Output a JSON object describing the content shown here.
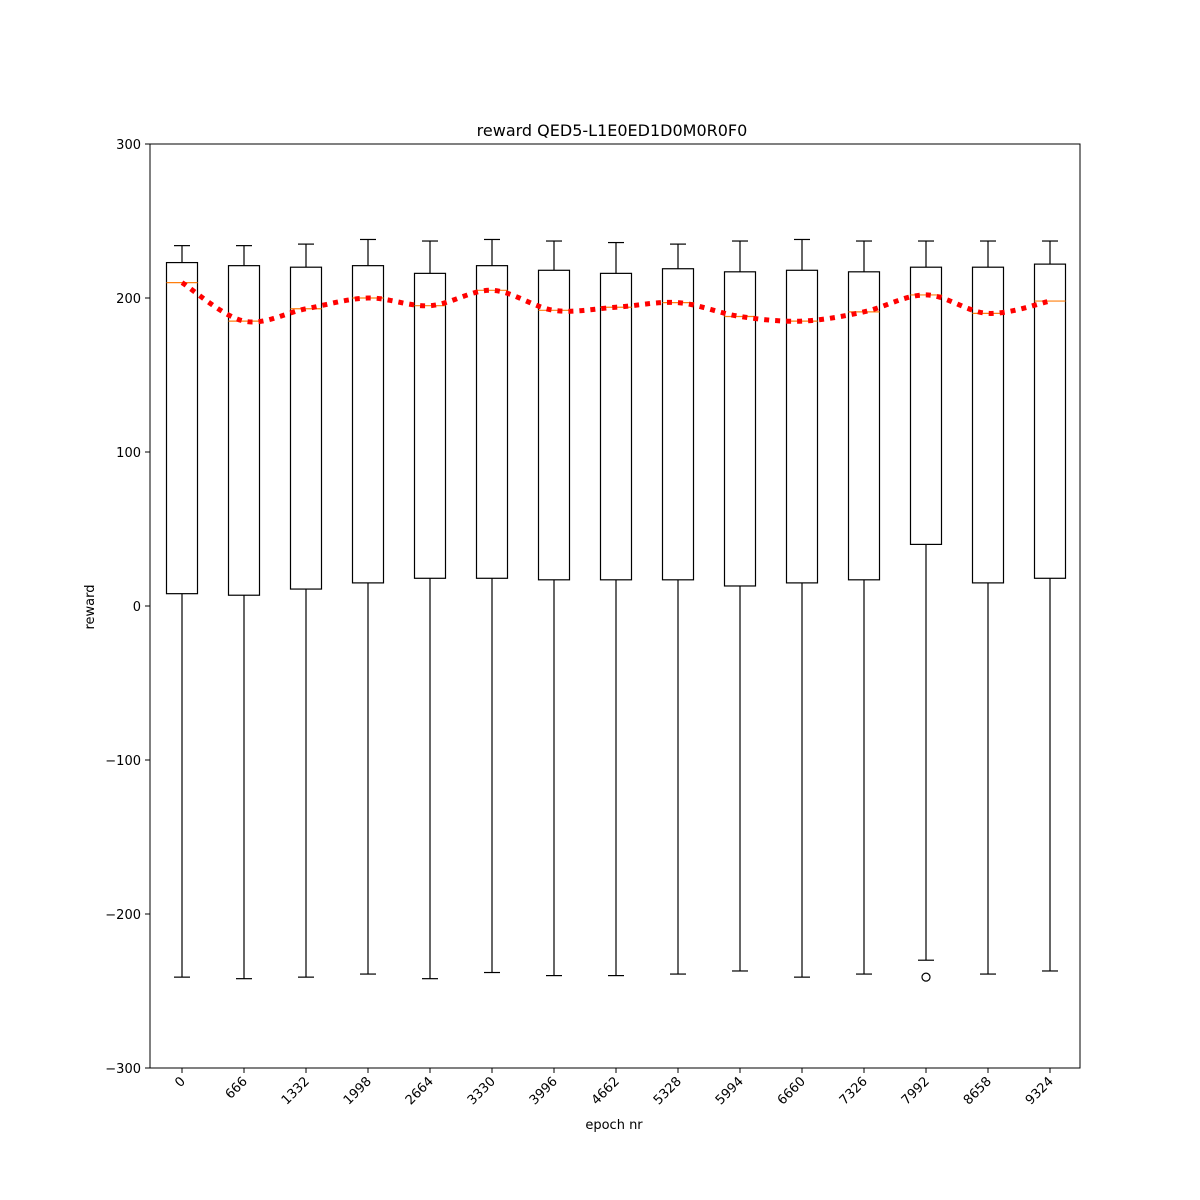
{
  "chart_data": {
    "type": "box",
    "title": "reward QED5-L1E0ED1D0M0R0F0",
    "xlabel": "epoch nr",
    "ylabel": "reward",
    "ylim": [
      -300,
      300
    ],
    "yticks": [
      -300,
      -200,
      -100,
      0,
      100,
      200,
      300
    ],
    "ytick_labels": [
      "−300",
      "−200",
      "−100",
      "0",
      "100",
      "200",
      "300"
    ],
    "categories": [
      "0",
      "666",
      "1332",
      "1998",
      "2664",
      "3330",
      "3996",
      "4662",
      "5328",
      "5994",
      "6660",
      "7326",
      "7992",
      "8658",
      "9324"
    ],
    "boxes": [
      {
        "whisker_low": -241,
        "q1": 8,
        "median": 210,
        "q3": 223,
        "whisker_high": 234
      },
      {
        "whisker_low": -242,
        "q1": 7,
        "median": 185,
        "q3": 221,
        "whisker_high": 234
      },
      {
        "whisker_low": -241,
        "q1": 11,
        "median": 193,
        "q3": 220,
        "whisker_high": 235
      },
      {
        "whisker_low": -239,
        "q1": 15,
        "median": 200,
        "q3": 221,
        "whisker_high": 238
      },
      {
        "whisker_low": -242,
        "q1": 18,
        "median": 195,
        "q3": 216,
        "whisker_high": 237
      },
      {
        "whisker_low": -238,
        "q1": 18,
        "median": 205,
        "q3": 221,
        "whisker_high": 238
      },
      {
        "whisker_low": -240,
        "q1": 17,
        "median": 192,
        "q3": 218,
        "whisker_high": 237
      },
      {
        "whisker_low": -240,
        "q1": 17,
        "median": 194,
        "q3": 216,
        "whisker_high": 236
      },
      {
        "whisker_low": -239,
        "q1": 17,
        "median": 197,
        "q3": 219,
        "whisker_high": 235
      },
      {
        "whisker_low": -237,
        "q1": 13,
        "median": 188,
        "q3": 217,
        "whisker_high": 237
      },
      {
        "whisker_low": -241,
        "q1": 15,
        "median": 185,
        "q3": 218,
        "whisker_high": 238
      },
      {
        "whisker_low": -239,
        "q1": 17,
        "median": 191,
        "q3": 217,
        "whisker_high": 237
      },
      {
        "whisker_low": -230,
        "q1": 40,
        "median": 202,
        "q3": 220,
        "whisker_high": 237,
        "outliers": [
          -241
        ]
      },
      {
        "whisker_low": -239,
        "q1": 15,
        "median": 190,
        "q3": 220,
        "whisker_high": 237
      },
      {
        "whisker_low": -237,
        "q1": 18,
        "median": 198,
        "q3": 222,
        "whisker_high": 237
      }
    ],
    "trend_line": {
      "values": [
        210,
        185,
        193,
        200,
        195,
        205,
        192,
        194,
        197,
        188,
        185,
        191,
        202,
        190,
        198
      ],
      "style": "dotted",
      "color": "#ff0000"
    },
    "colors": {
      "box": "#000000",
      "median": "#ff7f0e",
      "trend": "#ff0000"
    },
    "grid": false,
    "legend": "none"
  }
}
